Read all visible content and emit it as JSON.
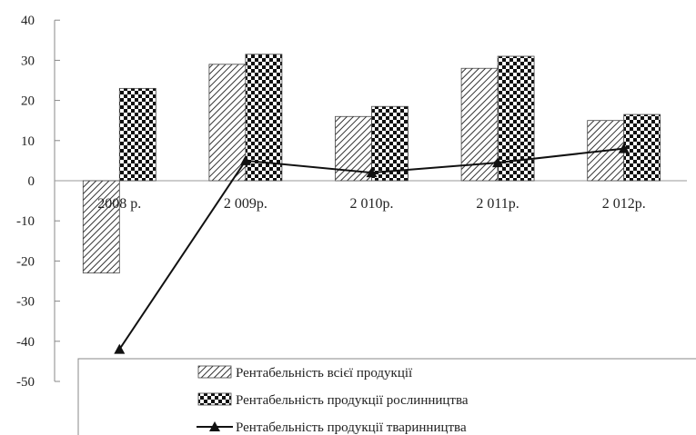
{
  "chart_data": {
    "type": "bar",
    "categories": [
      "2008 р.",
      "2 009р.",
      "2 010р.",
      "2 011р.",
      "2 012р."
    ],
    "series": [
      {
        "name": "Рентабельність всієї продукції",
        "values": [
          -23.0,
          29.0,
          16.0,
          28.0,
          15.0
        ],
        "kind": "bar",
        "pattern": "diagonal-hatch"
      },
      {
        "name": "Рентабельність продукції рослинництва",
        "values": [
          23.0,
          31.5,
          18.5,
          31.0,
          16.5
        ],
        "kind": "bar",
        "pattern": "checker"
      },
      {
        "name": "Рентабельність продукції тваринництва",
        "values": [
          -42.0,
          5.0,
          2.0,
          4.5,
          8.0
        ],
        "kind": "line",
        "marker": "triangle"
      }
    ],
    "yticks": [
      "40",
      "30",
      "20",
      "10",
      "0",
      "-10",
      "-20",
      "-30",
      "-40",
      "-50"
    ],
    "ylim": [
      -50,
      40
    ],
    "grid": false,
    "legend_position": "bottom",
    "title": "",
    "xlabel": "",
    "ylabel": ""
  }
}
